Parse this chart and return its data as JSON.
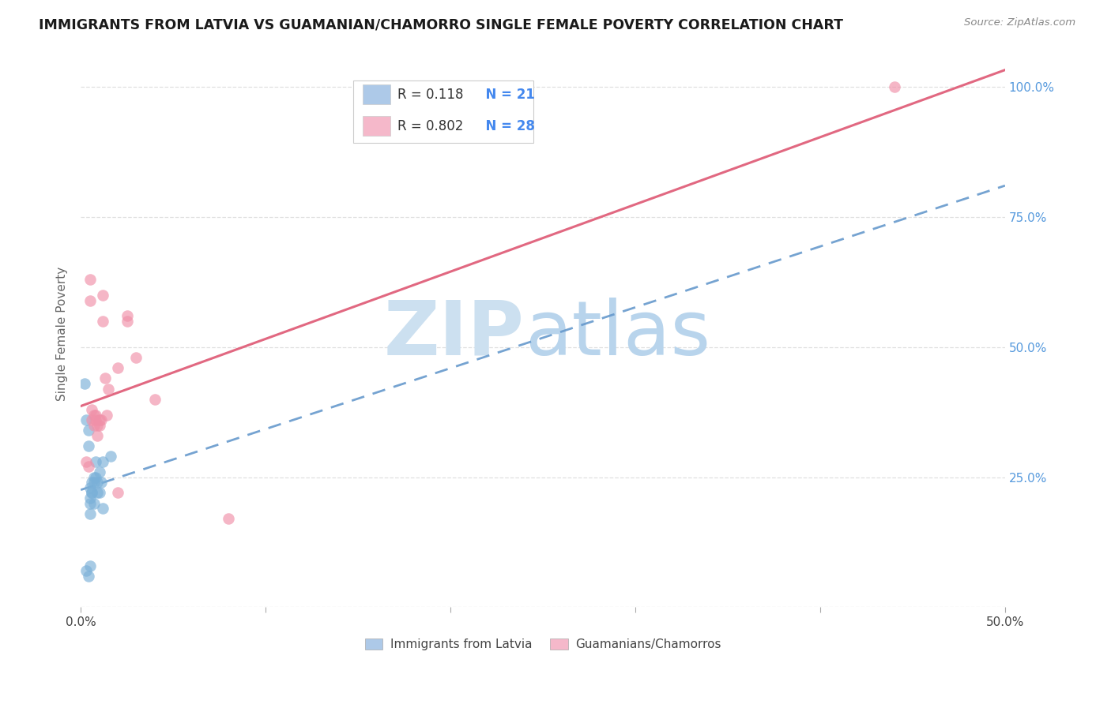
{
  "title": "IMMIGRANTS FROM LATVIA VS GUAMANIAN/CHAMORRO SINGLE FEMALE POVERTY CORRELATION CHART",
  "source": "Source: ZipAtlas.com",
  "ylabel": "Single Female Poverty",
  "x_min": 0.0,
  "x_max": 0.5,
  "y_min": 0.0,
  "y_max": 1.05,
  "x_ticks": [
    0.0,
    0.1,
    0.2,
    0.3,
    0.4,
    0.5
  ],
  "x_tick_labels": [
    "0.0%",
    "",
    "",
    "",
    "",
    "50.0%"
  ],
  "y_ticks": [
    0.0,
    0.25,
    0.5,
    0.75,
    1.0
  ],
  "y_tick_labels": [
    "",
    "25.0%",
    "50.0%",
    "75.0%",
    "100.0%"
  ],
  "legend_color1": "#adc9e8",
  "legend_color2": "#f5b8ca",
  "series1_color": "#7ab0d8",
  "series2_color": "#f090a8",
  "line1_color": "#6699cc",
  "line2_color": "#e0607a",
  "watermark_zip_color": "#cce0f0",
  "watermark_atlas_color": "#b8d4ec",
  "blue_scatter_x": [
    0.002,
    0.003,
    0.004,
    0.004,
    0.005,
    0.005,
    0.005,
    0.006,
    0.006,
    0.007,
    0.007,
    0.008,
    0.008,
    0.009,
    0.009,
    0.01,
    0.01,
    0.011,
    0.012,
    0.005,
    0.016
  ],
  "blue_scatter_y": [
    0.43,
    0.36,
    0.34,
    0.31,
    0.23,
    0.21,
    0.2,
    0.24,
    0.22,
    0.25,
    0.24,
    0.28,
    0.25,
    0.24,
    0.22,
    0.26,
    0.22,
    0.24,
    0.28,
    0.08,
    0.29
  ],
  "blue_scatter_x2": [
    0.003,
    0.004,
    0.005,
    0.006,
    0.007,
    0.012
  ],
  "blue_scatter_y2": [
    0.07,
    0.06,
    0.18,
    0.22,
    0.2,
    0.19
  ],
  "pink_scatter_x": [
    0.003,
    0.004,
    0.005,
    0.005,
    0.006,
    0.006,
    0.007,
    0.007,
    0.008,
    0.008,
    0.009,
    0.009,
    0.01,
    0.01,
    0.011,
    0.012,
    0.012,
    0.013,
    0.014,
    0.015,
    0.02,
    0.02,
    0.025,
    0.025,
    0.03,
    0.04,
    0.08,
    0.44
  ],
  "pink_scatter_y": [
    0.28,
    0.27,
    0.59,
    0.63,
    0.38,
    0.36,
    0.37,
    0.35,
    0.36,
    0.37,
    0.35,
    0.33,
    0.36,
    0.35,
    0.36,
    0.55,
    0.6,
    0.44,
    0.37,
    0.42,
    0.46,
    0.22,
    0.56,
    0.55,
    0.48,
    0.4,
    0.17,
    1.0
  ],
  "background_color": "#ffffff",
  "grid_color": "#dddddd",
  "r1_val": "0.118",
  "n1_val": "21",
  "r2_val": "0.802",
  "n2_val": "28"
}
